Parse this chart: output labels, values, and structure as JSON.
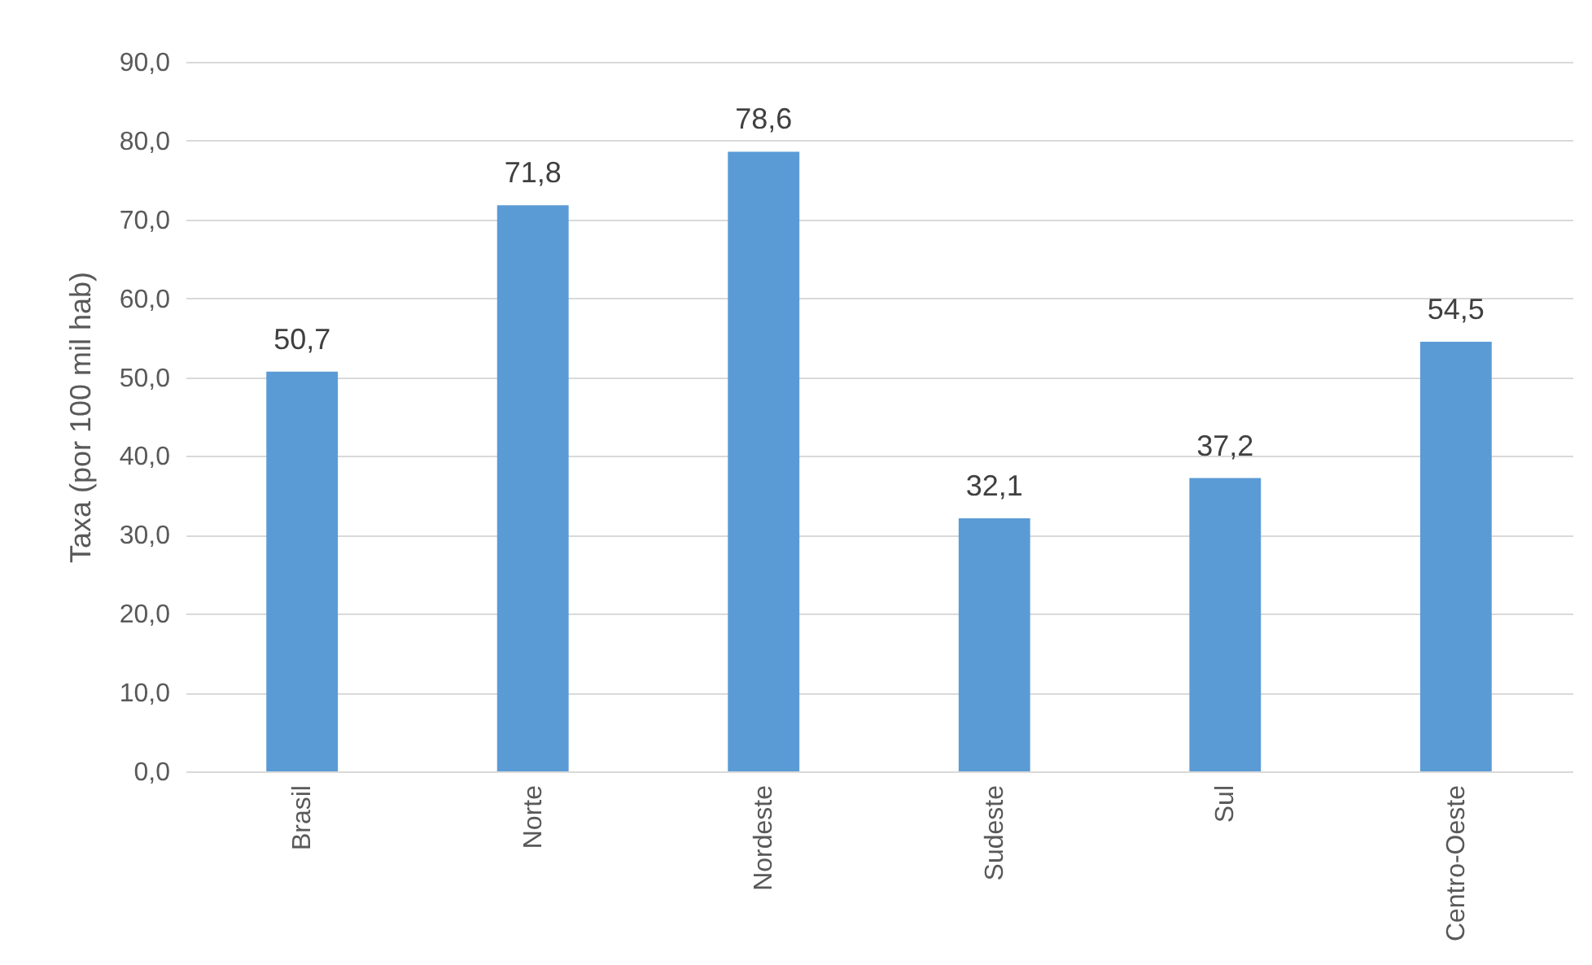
{
  "chart_data": {
    "type": "bar",
    "ylabel": "Taxa (por 100 mil hab)",
    "categories": [
      "Brasil",
      "Norte",
      "Nordeste",
      "Sudeste",
      "Sul",
      "Centro-Oeste"
    ],
    "values": [
      50.7,
      71.8,
      78.6,
      32.1,
      37.2,
      54.5
    ],
    "value_labels": [
      "50,7",
      "71,8",
      "78,6",
      "32,1",
      "37,2",
      "54,5"
    ],
    "color": "#5b9bd5",
    "ylim": [
      0,
      90
    ],
    "yticks": [
      {
        "value": 0,
        "label": "0,0"
      },
      {
        "value": 10,
        "label": "10,0"
      },
      {
        "value": 20,
        "label": "20,0"
      },
      {
        "value": 30,
        "label": "30,0"
      },
      {
        "value": 40,
        "label": "40,0"
      },
      {
        "value": 50,
        "label": "50,0"
      },
      {
        "value": 60,
        "label": "60,0"
      },
      {
        "value": 70,
        "label": "70,0"
      },
      {
        "value": 80,
        "label": "80,0"
      },
      {
        "value": 90,
        "label": "90,0"
      }
    ],
    "grid": "y"
  }
}
